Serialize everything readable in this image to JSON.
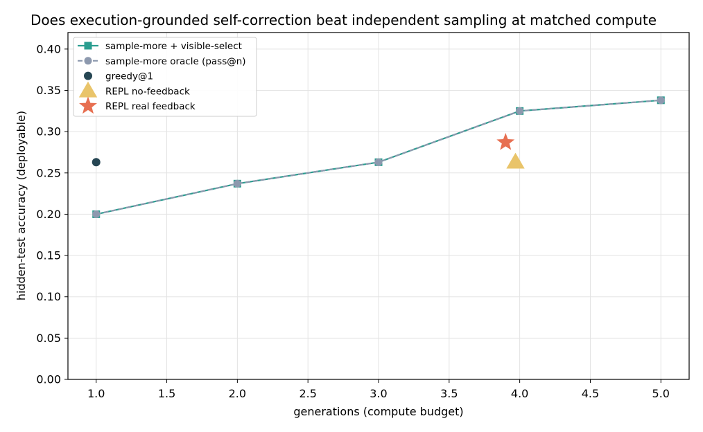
{
  "chart_data": {
    "type": "line",
    "title": "Does execution-grounded self-correction beat independent sampling at matched compute",
    "xlabel": "generations (compute budget)",
    "ylabel": "hidden-test accuracy (deployable)",
    "xlim": [
      0.8,
      5.2
    ],
    "ylim": [
      0.0,
      0.42
    ],
    "xticks": [
      1.0,
      1.5,
      2.0,
      2.5,
      3.0,
      3.5,
      4.0,
      4.5,
      5.0
    ],
    "xtick_labels": [
      "1.0",
      "1.5",
      "2.0",
      "2.5",
      "3.0",
      "3.5",
      "4.0",
      "4.5",
      "5.0"
    ],
    "yticks": [
      0.0,
      0.05,
      0.1,
      0.15,
      0.2,
      0.25,
      0.3,
      0.35,
      0.4
    ],
    "ytick_labels": [
      "0.00",
      "0.05",
      "0.10",
      "0.15",
      "0.20",
      "0.25",
      "0.30",
      "0.35",
      "0.40"
    ],
    "grid": true,
    "legend_position": "top-left",
    "series": [
      {
        "name": "sample-more + visible-select",
        "kind": "line",
        "marker": "square",
        "color": "#2a9d8f",
        "linestyle": "solid",
        "x": [
          1,
          2,
          3,
          4,
          5
        ],
        "y": [
          0.2,
          0.237,
          0.263,
          0.325,
          0.338
        ]
      },
      {
        "name": "sample-more oracle (pass@n)",
        "kind": "line",
        "marker": "circle",
        "color": "#8d99ae",
        "linestyle": "dashed",
        "x": [
          1,
          2,
          3,
          4,
          5
        ],
        "y": [
          0.2,
          0.237,
          0.263,
          0.325,
          0.338
        ]
      },
      {
        "name": "greedy@1",
        "kind": "scatter",
        "marker": "circle",
        "color": "#264653",
        "x": [
          1.0
        ],
        "y": [
          0.263
        ]
      },
      {
        "name": "REPL no-feedback",
        "kind": "scatter",
        "marker": "triangle",
        "color": "#e9c46a",
        "x": [
          3.97
        ],
        "y": [
          0.263
        ]
      },
      {
        "name": "REPL real feedback",
        "kind": "scatter",
        "marker": "star",
        "color": "#e76f51",
        "x": [
          3.9
        ],
        "y": [
          0.287
        ]
      }
    ]
  }
}
